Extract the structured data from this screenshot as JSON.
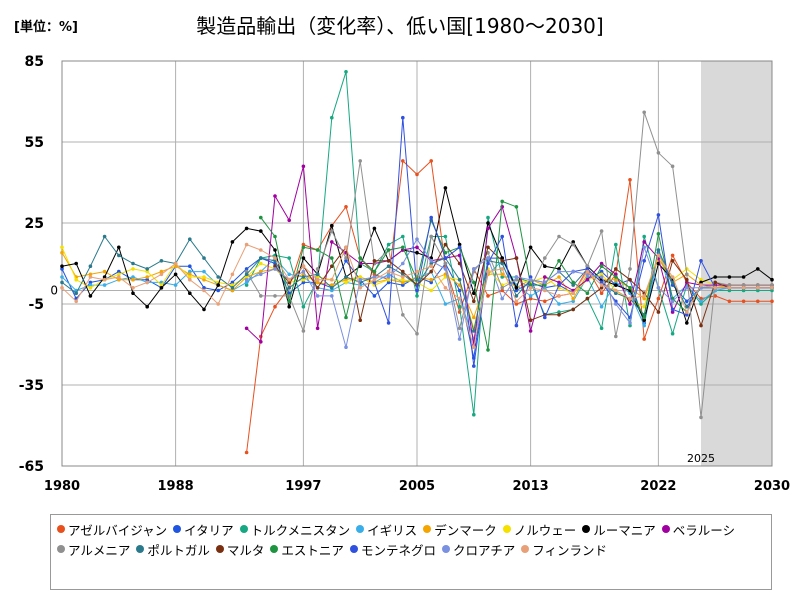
{
  "header": {
    "unit_label": "[単位：%]",
    "title": "製造品輸出（変化率）、低い国[1980～2030]"
  },
  "chart_data": {
    "type": "line",
    "title": "製造品輸出（変化率）、低い国[1980～2030]",
    "xlabel": "",
    "ylabel": "[単位：%]",
    "xlim": [
      1980,
      2030
    ],
    "ylim": [
      -65,
      85
    ],
    "x_ticks": [
      1980,
      1988,
      1997,
      2005,
      2013,
      2022,
      2030
    ],
    "y_ticks": [
      85,
      55,
      25,
      -5,
      -35,
      -65
    ],
    "zero_label": "0",
    "forecast_start": 2025,
    "forecast_label": "2025",
    "grid": true,
    "legend_position": "bottom",
    "series": [
      {
        "name": "アゼルバイジャン",
        "color": "#e8501e",
        "start": 1993,
        "values": [
          -60,
          -17,
          -6,
          1,
          17,
          15,
          24,
          31,
          12,
          6,
          4,
          48,
          43,
          48,
          9,
          -8,
          8,
          -2,
          0,
          -5,
          -3,
          -4,
          -2,
          -1,
          8,
          -1,
          6,
          41,
          -18,
          -3,
          13,
          3,
          -3,
          -2,
          -4,
          -4,
          -4,
          -4
        ]
      },
      {
        "name": "イタリア",
        "color": "#1f55e0",
        "start": 1980,
        "values": [
          8,
          -3,
          3,
          4,
          7,
          4,
          4,
          1,
          9,
          9,
          1,
          0,
          3,
          8,
          12,
          10,
          -1,
          3,
          3,
          1,
          11,
          4,
          -2,
          3,
          2,
          5,
          3,
          10,
          0,
          -25,
          12,
          12,
          0,
          3,
          1,
          2,
          -1,
          4,
          7,
          2,
          4,
          -12,
          14,
          2,
          -4,
          1,
          1,
          1,
          1,
          1,
          1
        ]
      },
      {
        "name": "トルクメニスタン",
        "color": "#16a882",
        "start": 1993,
        "values": [
          2,
          12,
          13,
          12,
          -6,
          4,
          64,
          81,
          10,
          7,
          17,
          20,
          -2,
          20,
          20,
          -6,
          -46,
          27,
          5,
          5,
          3,
          -9,
          -8,
          -7,
          -3,
          -14,
          17,
          -13,
          20,
          1,
          -16,
          2,
          -5,
          0,
          0,
          0,
          0,
          0
        ]
      },
      {
        "name": "イギリス",
        "color": "#3aaee8",
        "start": 1980,
        "values": [
          5,
          0,
          2,
          2,
          4,
          5,
          3,
          3,
          2,
          7,
          7,
          2,
          0,
          3,
          7,
          12,
          6,
          5,
          1,
          0,
          3,
          2,
          3,
          6,
          3,
          4,
          7,
          -5,
          -3,
          -18,
          6,
          11,
          2,
          -2,
          1,
          -5,
          -4,
          5,
          -6,
          3,
          -1,
          -13,
          15,
          -3,
          2,
          -4,
          0,
          1,
          1,
          1,
          1
        ]
      },
      {
        "name": "デンマーク",
        "color": "#f5a500",
        "start": 1980,
        "values": [
          14,
          5,
          6,
          7,
          4,
          4,
          5,
          7,
          9,
          6,
          4,
          2,
          0,
          5,
          7,
          8,
          4,
          6,
          3,
          2,
          4,
          5,
          3,
          4,
          3,
          5,
          4,
          6,
          2,
          -10,
          6,
          6,
          1,
          4,
          2,
          5,
          -3,
          6,
          4,
          4,
          1,
          -3,
          12,
          3,
          6,
          2,
          1,
          2,
          2,
          2,
          2
        ]
      },
      {
        "name": "ノルウェー",
        "color": "#f5e000",
        "start": 1980,
        "values": [
          16,
          4,
          1,
          4,
          6,
          8,
          7,
          2,
          10,
          5,
          5,
          3,
          2,
          5,
          10,
          8,
          3,
          4,
          5,
          4,
          3,
          5,
          2,
          4,
          4,
          3,
          0,
          5,
          4,
          -14,
          8,
          2,
          4,
          3,
          5,
          1,
          -1,
          4,
          6,
          0,
          -4,
          -6,
          13,
          4,
          8,
          4,
          2,
          2,
          2,
          2,
          2
        ]
      },
      {
        "name": "ルーマニア",
        "color": "#000000",
        "start": 1980,
        "values": [
          9,
          10,
          -2,
          5,
          16,
          -1,
          -6,
          1,
          6,
          -1,
          -7,
          2,
          18,
          23,
          22,
          15,
          -6,
          12,
          6,
          24,
          5,
          9,
          23,
          11,
          15,
          14,
          12,
          38,
          17,
          -1,
          25,
          12,
          1,
          16,
          9,
          8,
          18,
          9,
          4,
          2,
          0,
          -11,
          10,
          4,
          -12,
          3,
          5,
          5,
          5,
          8,
          4
        ]
      },
      {
        "name": "ベラルーシ",
        "color": "#a000a0",
        "start": 1993,
        "values": [
          -14,
          -19,
          35,
          26,
          46,
          -14,
          18,
          14,
          10,
          10,
          11,
          15,
          16,
          11,
          12,
          13,
          -20,
          23,
          31,
          12,
          -15,
          5,
          3,
          0,
          4,
          10,
          6,
          -5,
          18,
          12,
          -8,
          3,
          2,
          2,
          2,
          2,
          2,
          2
        ]
      },
      {
        "name": "アルメニア",
        "color": "#909090",
        "start": 1993,
        "values": [
          7,
          -2,
          -2,
          -2,
          -15,
          8,
          22,
          12,
          48,
          10,
          15,
          -9,
          -16,
          20,
          10,
          -14,
          7,
          14,
          1,
          4,
          1,
          12,
          20,
          17,
          9,
          22,
          -17,
          8,
          66,
          51,
          46,
          6,
          -47,
          3,
          2,
          2,
          2,
          2
        ]
      },
      {
        "name": "ポルトガル",
        "color": "#2a7a8c",
        "start": 1980,
        "values": [
          3,
          -1,
          9,
          20,
          13,
          10,
          8,
          11,
          10,
          19,
          12,
          5,
          1,
          6,
          12,
          11,
          1,
          5,
          6,
          1,
          5,
          3,
          5,
          9,
          6,
          2,
          10,
          12,
          4,
          -15,
          11,
          10,
          -2,
          4,
          3,
          7,
          2,
          8,
          3,
          -1,
          -3,
          -9,
          15,
          3,
          -6,
          1,
          1,
          1,
          1,
          1,
          1
        ]
      },
      {
        "name": "マルタ",
        "color": "#7a3010",
        "start": 1995,
        "values": [
          9,
          3,
          9,
          1,
          9,
          16,
          -11,
          11,
          11,
          7,
          2,
          7,
          17,
          10,
          -4,
          16,
          11,
          12,
          -11,
          -9,
          -9,
          -7,
          -3,
          1,
          8,
          4,
          -1,
          -8,
          11,
          4,
          -13,
          3,
          1,
          1,
          1,
          1
        ]
      },
      {
        "name": "エストニア",
        "color": "#1f9440",
        "start": 1994,
        "values": [
          27,
          20,
          -4,
          16,
          15,
          12,
          -10,
          12,
          7,
          15,
          16,
          4,
          26,
          14,
          16,
          3,
          -22,
          33,
          31,
          2,
          2,
          11,
          3,
          -1,
          9,
          5,
          1,
          -10,
          21,
          -3,
          -8,
          2,
          1,
          1,
          1,
          1,
          1
        ]
      },
      {
        "name": "モンテネグロ",
        "color": "#3050e0",
        "start": 2002,
        "values": [
          3,
          -12,
          64,
          0,
          27,
          12,
          16,
          -28,
          10,
          20,
          -13,
          5,
          -10,
          2,
          7,
          8,
          3,
          -4,
          -10,
          11,
          28,
          -7,
          -9,
          11,
          1,
          1,
          1,
          1,
          1
        ]
      },
      {
        "name": "クロアチア",
        "color": "#7a90e0",
        "start": 1993,
        "values": [
          4,
          6,
          8,
          4,
          7,
          -2,
          -2,
          -21,
          4,
          5,
          5,
          10,
          19,
          11,
          8,
          -18,
          8,
          12,
          -3,
          5,
          4,
          3,
          7,
          7,
          6,
          5,
          -5,
          -12,
          16,
          1,
          -4,
          1,
          1,
          1,
          1,
          1,
          1,
          1
        ]
      },
      {
        "name": "フィンランド",
        "color": "#e8a078",
        "start": 1980,
        "values": [
          1,
          -4,
          5,
          4,
          5,
          1,
          3,
          6,
          10,
          4,
          0,
          -5,
          6,
          17,
          15,
          12,
          4,
          9,
          4,
          4,
          16,
          1,
          4,
          7,
          5,
          7,
          9,
          1,
          -3,
          -21,
          7,
          8,
          -4,
          1,
          0,
          -2,
          -1,
          7,
          2,
          0,
          -3,
          -2,
          13,
          5,
          -8,
          2,
          1,
          1,
          1,
          1,
          1
        ]
      }
    ]
  }
}
